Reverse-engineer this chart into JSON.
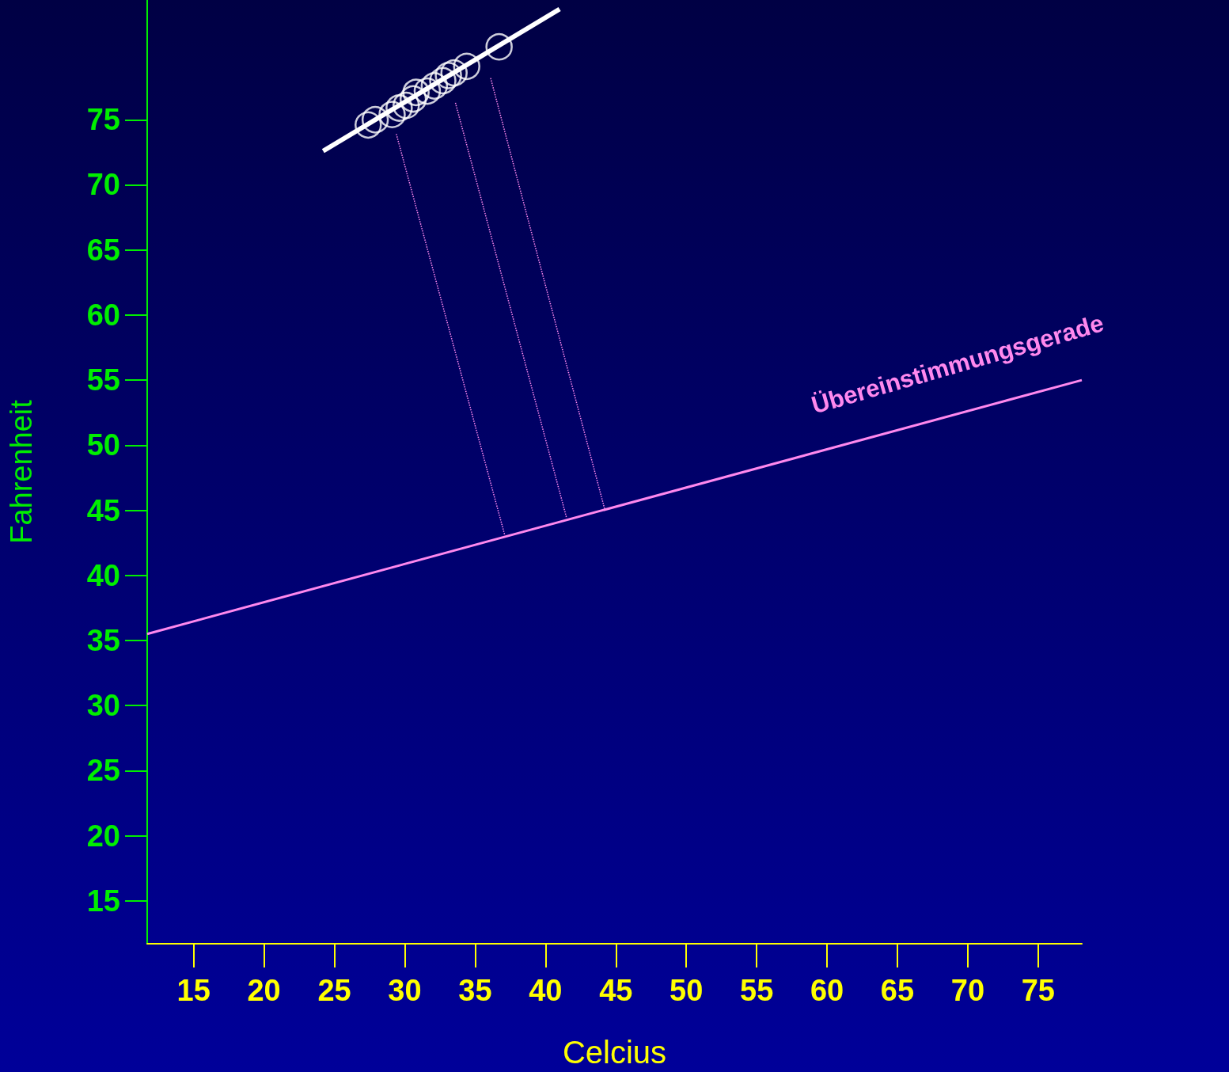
{
  "chart_data": {
    "type": "scatter",
    "xlabel": "Celcius",
    "ylabel": "Fahrenheit",
    "xlim": [
      11.7,
      78.1
    ],
    "ylim": [
      11.7,
      84.2
    ],
    "xticks": [
      15,
      20,
      25,
      30,
      35,
      40,
      45,
      50,
      55,
      60,
      65,
      70,
      75
    ],
    "yticks": [
      15,
      20,
      25,
      30,
      35,
      40,
      45,
      50,
      55,
      60,
      65,
      70,
      75
    ],
    "grid": false,
    "annotations": [
      "Übereinstimmungsgerade"
    ],
    "series": [
      {
        "color": "#ffffff",
        "marker": "circle",
        "x": [
          27.4,
          27.9,
          29.1,
          29.6,
          30.1,
          30.6,
          30.8,
          31.6,
          32.1,
          32.7,
          33.1,
          33.5,
          34.4,
          36.7
        ],
        "values": [
          74.6,
          75.0,
          75.4,
          75.9,
          76.1,
          76.6,
          77.1,
          77.2,
          77.6,
          78.0,
          78.4,
          78.6,
          79.1,
          80.6
        ]
      },
      {
        "type": "line",
        "color": "#ffffff",
        "marker": "none",
        "line_style": "solid",
        "x": [
          24.2,
          41.0
        ],
        "values": [
          72.6,
          83.5
        ]
      },
      {
        "type": "line",
        "color": "#ff88ee",
        "marker": "none",
        "line_style": "solid",
        "x": [
          11.7,
          78.1
        ],
        "values": [
          35.5,
          55.0
        ]
      },
      {
        "type": "line",
        "color": "#ff88ee",
        "marker": "none",
        "line_style": "dotted",
        "x": [
          29.4,
          37.1
        ],
        "values": [
          73.9,
          43.1
        ]
      },
      {
        "type": "line",
        "color": "#ff88ee",
        "marker": "none",
        "line_style": "dotted",
        "x": [
          33.6,
          41.5
        ],
        "values": [
          76.3,
          44.4
        ]
      },
      {
        "type": "line",
        "color": "#ff88ee",
        "marker": "none",
        "line_style": "dotted",
        "x": [
          36.1,
          44.2
        ],
        "values": [
          78.2,
          45.1
        ]
      }
    ]
  }
}
